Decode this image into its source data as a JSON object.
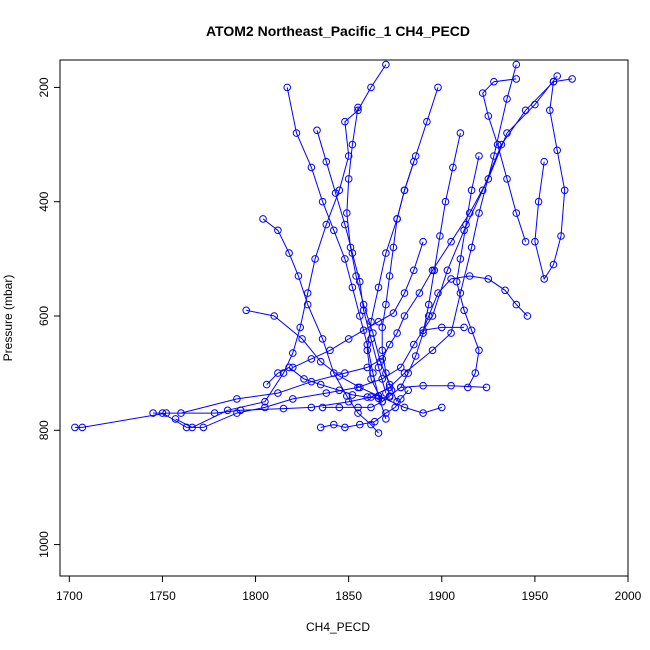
{
  "chart_data": {
    "type": "scatter",
    "title": "ATOM2 Northeast_Pacific_1 CH4_PECD",
    "xlabel": "CH4_PECD",
    "ylabel": "Pressure (mbar)",
    "xlim": [
      1695,
      2000
    ],
    "ylim": [
      1055,
      152
    ],
    "y_reversed": true,
    "x_ticks": [
      1700,
      1750,
      1800,
      1850,
      1900,
      1950,
      2000
    ],
    "y_ticks": [
      200,
      400,
      600,
      800,
      1000
    ],
    "grid": false,
    "legend": "none",
    "marker": "open-circle",
    "line_color": "#0000ff",
    "profiles": [
      {
        "points": [
          [
            1703,
            795
          ],
          [
            1707,
            795
          ],
          [
            1752,
            770
          ],
          [
            1778,
            770
          ],
          [
            1792,
            765
          ],
          [
            1815,
            762
          ],
          [
            1830,
            760
          ],
          [
            1850,
            750
          ],
          [
            1862,
            742
          ],
          [
            1872,
            725
          ],
          [
            1880,
            700
          ],
          [
            1895,
            660
          ],
          [
            1905,
            630
          ],
          [
            1910,
            560
          ],
          [
            1916,
            480
          ],
          [
            1920,
            420
          ],
          [
            1928,
            320
          ],
          [
            1935,
            220
          ],
          [
            1940,
            160
          ]
        ]
      },
      {
        "points": [
          [
            1745,
            770
          ],
          [
            1750,
            770
          ],
          [
            1763,
            795
          ],
          [
            1772,
            795
          ],
          [
            1790,
            770
          ],
          [
            1805,
            760
          ],
          [
            1820,
            745
          ],
          [
            1838,
            735
          ],
          [
            1855,
            725
          ],
          [
            1868,
            710
          ],
          [
            1878,
            690
          ],
          [
            1885,
            650
          ],
          [
            1895,
            600
          ],
          [
            1903,
            520
          ],
          [
            1912,
            450
          ],
          [
            1922,
            380
          ],
          [
            1932,
            300
          ],
          [
            1945,
            240
          ],
          [
            1960,
            190
          ]
        ]
      },
      {
        "points": [
          [
            1757,
            780
          ],
          [
            1766,
            795
          ],
          [
            1785,
            765
          ],
          [
            1805,
            750
          ],
          [
            1815,
            700
          ],
          [
            1820,
            665
          ],
          [
            1824,
            620
          ],
          [
            1828,
            560
          ],
          [
            1832,
            500
          ],
          [
            1838,
            440
          ],
          [
            1845,
            380
          ],
          [
            1850,
            320
          ],
          [
            1848,
            260
          ],
          [
            1855,
            240
          ],
          [
            1862,
            200
          ],
          [
            1870,
            160
          ]
        ]
      },
      {
        "points": [
          [
            1760,
            770
          ],
          [
            1790,
            745
          ],
          [
            1812,
            735
          ],
          [
            1830,
            715
          ],
          [
            1848,
            700
          ],
          [
            1860,
            690
          ],
          [
            1868,
            675
          ],
          [
            1872,
            650
          ],
          [
            1876,
            630
          ],
          [
            1880,
            600
          ],
          [
            1888,
            560
          ],
          [
            1895,
            520
          ],
          [
            1905,
            470
          ],
          [
            1915,
            420
          ],
          [
            1925,
            360
          ],
          [
            1935,
            280
          ],
          [
            1950,
            230
          ],
          [
            1962,
            180
          ]
        ]
      },
      {
        "points": [
          [
            1795,
            590
          ],
          [
            1810,
            600
          ],
          [
            1825,
            640
          ],
          [
            1835,
            680
          ],
          [
            1845,
            705
          ],
          [
            1856,
            725
          ],
          [
            1866,
            740
          ],
          [
            1880,
            760
          ],
          [
            1890,
            770
          ],
          [
            1900,
            760
          ]
        ]
      },
      {
        "points": [
          [
            1804,
            430
          ],
          [
            1812,
            450
          ],
          [
            1818,
            490
          ],
          [
            1823,
            530
          ],
          [
            1828,
            580
          ],
          [
            1836,
            640
          ],
          [
            1842,
            700
          ],
          [
            1849,
            740
          ],
          [
            1855,
            770
          ],
          [
            1862,
            790
          ],
          [
            1866,
            805
          ]
        ]
      },
      {
        "points": [
          [
            1817,
            200
          ],
          [
            1822,
            280
          ],
          [
            1830,
            340
          ],
          [
            1836,
            400
          ],
          [
            1842,
            450
          ],
          [
            1848,
            500
          ],
          [
            1852,
            550
          ],
          [
            1856,
            600
          ],
          [
            1860,
            650
          ],
          [
            1863,
            700
          ],
          [
            1866,
            740
          ],
          [
            1870,
            780
          ]
        ]
      },
      {
        "points": [
          [
            1833,
            275
          ],
          [
            1838,
            330
          ],
          [
            1843,
            385
          ],
          [
            1848,
            440
          ],
          [
            1852,
            490
          ],
          [
            1856,
            540
          ],
          [
            1858,
            590
          ],
          [
            1862,
            640
          ],
          [
            1866,
            690
          ],
          [
            1870,
            735
          ]
        ]
      },
      {
        "points": [
          [
            1855,
            235
          ],
          [
            1852,
            300
          ],
          [
            1850,
            360
          ],
          [
            1849,
            420
          ],
          [
            1851,
            480
          ],
          [
            1854,
            530
          ],
          [
            1858,
            580
          ],
          [
            1863,
            630
          ],
          [
            1867,
            680
          ],
          [
            1872,
            720
          ],
          [
            1876,
            750
          ]
        ]
      },
      {
        "points": [
          [
            1885,
            330
          ],
          [
            1880,
            380
          ],
          [
            1876,
            430
          ],
          [
            1874,
            480
          ],
          [
            1872,
            530
          ],
          [
            1870,
            580
          ],
          [
            1868,
            620
          ],
          [
            1868,
            660
          ],
          [
            1870,
            700
          ],
          [
            1873,
            730
          ]
        ]
      },
      {
        "points": [
          [
            1898,
            200
          ],
          [
            1892,
            260
          ],
          [
            1886,
            320
          ],
          [
            1880,
            380
          ],
          [
            1876,
            430
          ],
          [
            1870,
            490
          ],
          [
            1866,
            550
          ],
          [
            1862,
            610
          ],
          [
            1860,
            660
          ],
          [
            1862,
            710
          ],
          [
            1868,
            750
          ]
        ]
      },
      {
        "points": [
          [
            1910,
            280
          ],
          [
            1906,
            340
          ],
          [
            1902,
            400
          ],
          [
            1899,
            460
          ],
          [
            1896,
            520
          ],
          [
            1893,
            580
          ],
          [
            1890,
            630
          ],
          [
            1886,
            670
          ],
          [
            1882,
            700
          ],
          [
            1878,
            725
          ]
        ]
      },
      {
        "points": [
          [
            1920,
            320
          ],
          [
            1916,
            380
          ],
          [
            1913,
            440
          ],
          [
            1910,
            500
          ],
          [
            1908,
            540
          ],
          [
            1912,
            590
          ],
          [
            1916,
            625
          ],
          [
            1920,
            660
          ],
          [
            1918,
            700
          ],
          [
            1914,
            725
          ]
        ]
      },
      {
        "points": [
          [
            1945,
            470
          ],
          [
            1940,
            420
          ],
          [
            1935,
            360
          ],
          [
            1930,
            300
          ],
          [
            1925,
            250
          ],
          [
            1922,
            210
          ],
          [
            1928,
            190
          ],
          [
            1940,
            185
          ]
        ]
      },
      {
        "points": [
          [
            1955,
            330
          ],
          [
            1952,
            400
          ],
          [
            1950,
            470
          ],
          [
            1955,
            535
          ],
          [
            1960,
            510
          ],
          [
            1964,
            460
          ],
          [
            1966,
            380
          ],
          [
            1962,
            310
          ],
          [
            1958,
            240
          ],
          [
            1960,
            190
          ],
          [
            1970,
            185
          ]
        ]
      },
      {
        "points": [
          [
            1946,
            600
          ],
          [
            1940,
            580
          ],
          [
            1934,
            555
          ],
          [
            1925,
            535
          ],
          [
            1915,
            530
          ],
          [
            1905,
            535
          ],
          [
            1898,
            560
          ],
          [
            1893,
            600
          ],
          [
            1890,
            625
          ],
          [
            1900,
            620
          ],
          [
            1912,
            620
          ]
        ]
      },
      {
        "points": [
          [
            1836,
            760
          ],
          [
            1845,
            760
          ],
          [
            1855,
            760
          ],
          [
            1862,
            760
          ],
          [
            1868,
            750
          ],
          [
            1872,
            740
          ],
          [
            1878,
            725
          ],
          [
            1890,
            722
          ],
          [
            1905,
            722
          ],
          [
            1924,
            725
          ]
        ]
      },
      {
        "points": [
          [
            1835,
            795
          ],
          [
            1842,
            790
          ],
          [
            1848,
            795
          ],
          [
            1856,
            790
          ],
          [
            1864,
            785
          ],
          [
            1870,
            770
          ],
          [
            1875,
            760
          ],
          [
            1878,
            745
          ],
          [
            1882,
            730
          ]
        ]
      },
      {
        "points": [
          [
            1820,
            690
          ],
          [
            1830,
            675
          ],
          [
            1840,
            660
          ],
          [
            1850,
            640
          ],
          [
            1858,
            625
          ],
          [
            1866,
            610
          ],
          [
            1874,
            595
          ],
          [
            1880,
            560
          ],
          [
            1885,
            520
          ],
          [
            1890,
            470
          ]
        ]
      },
      {
        "points": [
          [
            1806,
            720
          ],
          [
            1812,
            700
          ],
          [
            1818,
            690
          ],
          [
            1826,
            710
          ],
          [
            1835,
            720
          ],
          [
            1845,
            730
          ],
          [
            1852,
            738
          ],
          [
            1860,
            742
          ],
          [
            1866,
            744
          ],
          [
            1872,
            742
          ]
        ]
      }
    ]
  }
}
